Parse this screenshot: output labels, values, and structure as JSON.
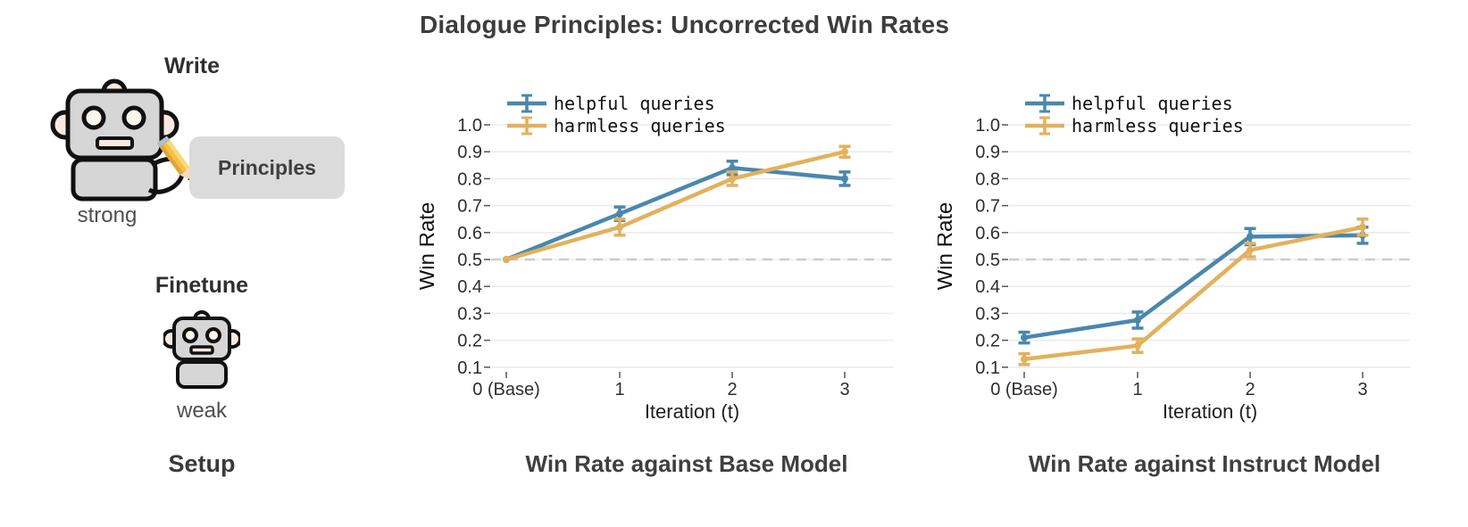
{
  "title": "Dialogue Principles: Uncorrected Win Rates",
  "setup": {
    "caption": "Setup",
    "write_label": "Write",
    "strong_label": "strong",
    "principles_label": "Principles",
    "finetune_label": "Finetune",
    "weak_label": "weak"
  },
  "colors": {
    "helpful_series": "#4a87ae",
    "harmless_series": "#e2b15c",
    "baseline_dash": "#cbcbcb",
    "gridline": "#ececec",
    "text_dark": "#3d3d3d",
    "robot_body": "#d6d6d6",
    "principles_box": "#dbdbdb"
  },
  "chart_data": [
    {
      "type": "line",
      "title": "Win Rate against Base Model",
      "xlabel": "Iteration (t)",
      "ylabel": "Win Rate",
      "categories": [
        "0 (Base)",
        "1",
        "2",
        "3"
      ],
      "x_values": [
        0,
        1,
        2,
        3
      ],
      "ylim": [
        0.1,
        1.0
      ],
      "y_tick_labels": [
        "1.0",
        "0.9",
        "0.8",
        "0.7",
        "0.6",
        "0.5",
        "0.4",
        "0.3",
        "0.2",
        "0.1"
      ],
      "grid": true,
      "legend_position": "upper left",
      "baseline": 0.5,
      "series": [
        {
          "name": "helpful queries",
          "color": "#4a87ae",
          "values": [
            0.5,
            0.67,
            0.84,
            0.8
          ],
          "errors": [
            0,
            0.025,
            0.025,
            0.025
          ]
        },
        {
          "name": "harmless queries",
          "color": "#e2b15c",
          "values": [
            0.5,
            0.62,
            0.8,
            0.9
          ],
          "errors": [
            0,
            0.03,
            0.025,
            0.02
          ]
        }
      ]
    },
    {
      "type": "line",
      "title": "Win Rate against Instruct Model",
      "xlabel": "Iteration (t)",
      "ylabel": "Win Rate",
      "categories": [
        "0 (Base)",
        "1",
        "2",
        "3"
      ],
      "x_values": [
        0,
        1,
        2,
        3
      ],
      "ylim": [
        0.1,
        1.0
      ],
      "y_tick_labels": [
        "1.0",
        "0.9",
        "0.8",
        "0.7",
        "0.6",
        "0.5",
        "0.4",
        "0.3",
        "0.2",
        "0.1"
      ],
      "grid": true,
      "legend_position": "upper left",
      "baseline": 0.5,
      "series": [
        {
          "name": "helpful queries",
          "color": "#4a87ae",
          "values": [
            0.21,
            0.275,
            0.585,
            0.59
          ],
          "errors": [
            0.02,
            0.03,
            0.03,
            0.03
          ]
        },
        {
          "name": "harmless queries",
          "color": "#e2b15c",
          "values": [
            0.13,
            0.18,
            0.535,
            0.62
          ],
          "errors": [
            0.02,
            0.025,
            0.025,
            0.03
          ]
        }
      ]
    }
  ]
}
